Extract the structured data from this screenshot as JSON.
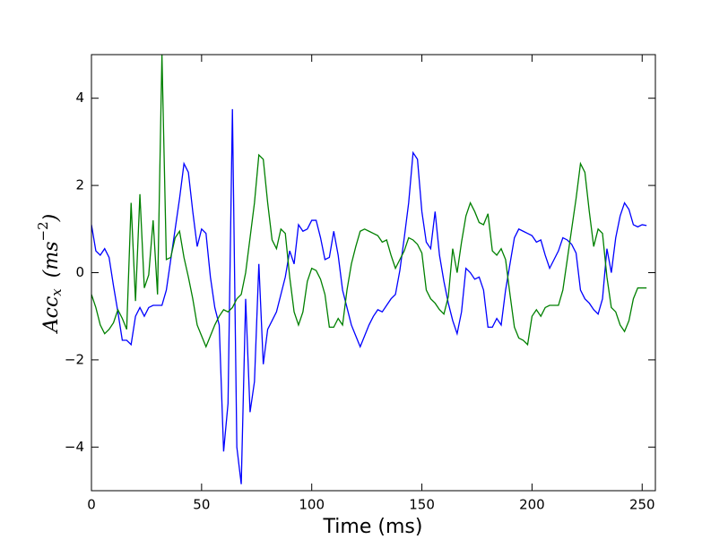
{
  "chart_data": {
    "type": "line",
    "xlabel": "Time (ms)",
    "ylabel": [
      "Acc",
      "x",
      "(ms",
      "−2",
      ")"
    ],
    "x": [
      0,
      2,
      4,
      6,
      8,
      10,
      12,
      14,
      16,
      18,
      20,
      22,
      24,
      26,
      28,
      30,
      32,
      34,
      36,
      38,
      40,
      42,
      44,
      46,
      48,
      50,
      52,
      54,
      56,
      58,
      60,
      62,
      64,
      66,
      68,
      70,
      72,
      74,
      76,
      78,
      80,
      82,
      84,
      86,
      88,
      90,
      92,
      94,
      96,
      98,
      100,
      102,
      104,
      106,
      108,
      110,
      112,
      114,
      116,
      118,
      120,
      122,
      124,
      126,
      128,
      130,
      132,
      134,
      136,
      138,
      140,
      142,
      144,
      146,
      148,
      150,
      152,
      154,
      156,
      158,
      160,
      162,
      164,
      166,
      168,
      170,
      172,
      174,
      176,
      178,
      180,
      182,
      184,
      186,
      188,
      190,
      192,
      194,
      196,
      198,
      200,
      202,
      204,
      206,
      208,
      210,
      212,
      214,
      216,
      218,
      220,
      222,
      224,
      226,
      228,
      230,
      232,
      234,
      236,
      238,
      240,
      242,
      244,
      246,
      248,
      250,
      252
    ],
    "series": [
      {
        "color": "#0000ff",
        "values": [
          1.1,
          0.5,
          0.4,
          0.55,
          0.35,
          -0.3,
          -0.9,
          -1.55,
          -1.55,
          -1.65,
          -1.0,
          -0.8,
          -1.0,
          -0.8,
          -0.75,
          -0.75,
          -0.75,
          -0.4,
          0.3,
          1.0,
          1.7,
          2.5,
          2.3,
          1.4,
          0.6,
          1.0,
          0.9,
          -0.1,
          -0.8,
          -1.2,
          -4.1,
          -3.0,
          3.75,
          -4.0,
          -4.85,
          -0.6,
          -3.2,
          -2.5,
          0.2,
          -2.1,
          -1.3,
          -1.1,
          -0.9,
          -0.5,
          -0.1,
          0.5,
          0.2,
          1.1,
          0.95,
          1.0,
          1.2,
          1.2,
          0.8,
          0.3,
          0.35,
          0.95,
          0.4,
          -0.4,
          -0.8,
          -1.2,
          -1.45,
          -1.7,
          -1.45,
          -1.2,
          -1.0,
          -0.85,
          -0.9,
          -0.75,
          -0.6,
          -0.5,
          0.05,
          0.8,
          1.6,
          2.75,
          2.6,
          1.4,
          0.7,
          0.55,
          1.4,
          0.4,
          -0.2,
          -0.7,
          -1.1,
          -1.4,
          -0.9,
          0.1,
          0.0,
          -0.15,
          -0.1,
          -0.4,
          -1.25,
          -1.25,
          -1.05,
          -1.2,
          -0.4,
          0.2,
          0.8,
          1.0,
          0.95,
          0.9,
          0.85,
          0.7,
          0.75,
          0.4,
          0.1,
          0.3,
          0.5,
          0.8,
          0.75,
          0.65,
          0.45,
          -0.4,
          -0.6,
          -0.7,
          -0.85,
          -0.95,
          -0.6,
          0.55,
          0.0,
          0.8,
          1.3,
          1.6,
          1.45,
          1.1,
          1.05,
          1.1,
          1.08
        ]
      },
      {
        "color": "#008000",
        "values": [
          -0.5,
          -0.8,
          -1.2,
          -1.4,
          -1.3,
          -1.15,
          -0.85,
          -1.05,
          -1.3,
          1.6,
          -0.65,
          1.8,
          -0.35,
          -0.05,
          1.2,
          -0.5,
          5.0,
          0.3,
          0.35,
          0.8,
          0.95,
          0.35,
          -0.1,
          -0.6,
          -1.2,
          -1.45,
          -1.7,
          -1.45,
          -1.2,
          -1.0,
          -0.85,
          -0.9,
          -0.8,
          -0.6,
          -0.5,
          0.0,
          0.8,
          1.6,
          2.7,
          2.6,
          1.6,
          0.75,
          0.55,
          1.0,
          0.9,
          -0.1,
          -0.9,
          -1.2,
          -0.9,
          -0.2,
          0.1,
          0.05,
          -0.15,
          -0.5,
          -1.25,
          -1.25,
          -1.05,
          -1.2,
          -0.4,
          0.2,
          0.6,
          0.95,
          1.0,
          0.95,
          0.9,
          0.85,
          0.7,
          0.75,
          0.4,
          0.1,
          0.3,
          0.5,
          0.8,
          0.75,
          0.65,
          0.45,
          -0.4,
          -0.6,
          -0.7,
          -0.85,
          -0.95,
          -0.55,
          0.55,
          0.0,
          0.7,
          1.3,
          1.6,
          1.4,
          1.15,
          1.1,
          1.35,
          0.5,
          0.4,
          0.55,
          0.3,
          -0.5,
          -1.25,
          -1.5,
          -1.55,
          -1.65,
          -1.0,
          -0.85,
          -1.0,
          -0.8,
          -0.75,
          -0.75,
          -0.75,
          -0.4,
          0.3,
          1.0,
          1.7,
          2.5,
          2.3,
          1.4,
          0.6,
          1.0,
          0.9,
          -0.1,
          -0.8,
          -0.9,
          -1.2,
          -1.35,
          -1.1,
          -0.6,
          -0.35,
          -0.35,
          -0.35
        ]
      }
    ],
    "xlim": [
      0,
      256
    ],
    "ylim": [
      -5,
      5
    ],
    "xticks": [
      0,
      50,
      100,
      150,
      200,
      250
    ],
    "yticks": [
      {
        "value": -4,
        "label": "−4"
      },
      {
        "value": -2,
        "label": "−2"
      },
      0,
      2,
      4
    ],
    "grid": false
  }
}
